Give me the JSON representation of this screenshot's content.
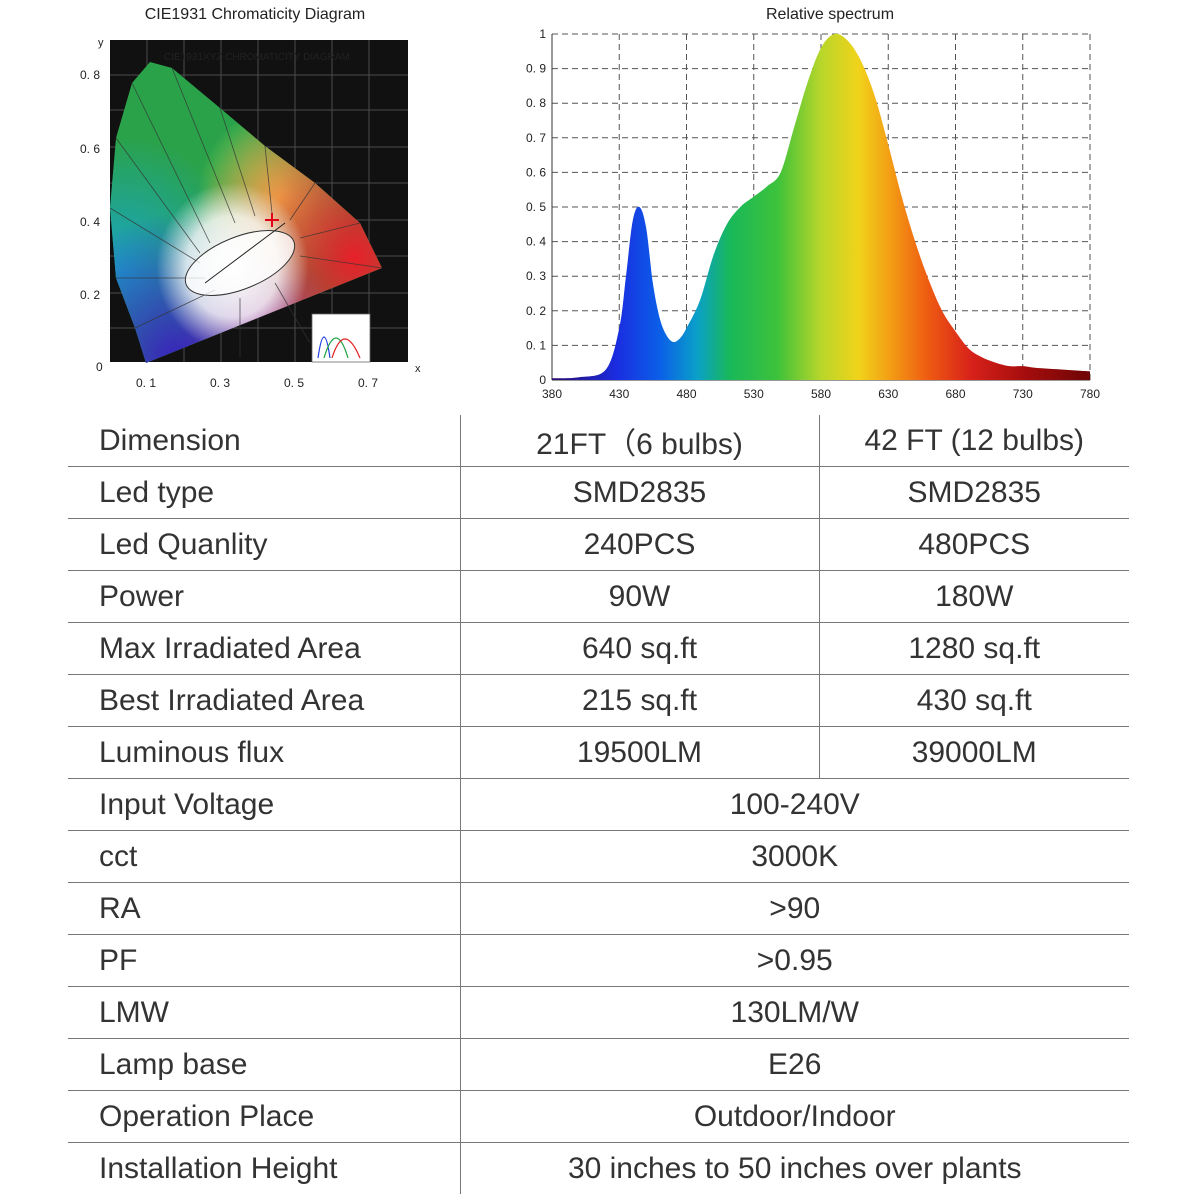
{
  "cie": {
    "title": "CIE1931 Chromaticity Diagram",
    "inner_title": "CIE1931XYZ CHROMATICITY DIAGRAM",
    "x_axis_label": "x",
    "y_axis_label": "y",
    "x_ticks": [
      "0. 1",
      "0. 3",
      "0. 5",
      "0. 7"
    ],
    "y_ticks": [
      "0. 8",
      "0. 6",
      "0. 4",
      "0. 2",
      "0"
    ],
    "marker_color": "#e0001a"
  },
  "chart_data": {
    "type": "area",
    "title": "Relative spectrum",
    "xlabel": "",
    "ylabel": "",
    "xlim": [
      380,
      780
    ],
    "ylim": [
      0,
      1
    ],
    "x_ticks": [
      380,
      430,
      480,
      530,
      580,
      630,
      680,
      730,
      780
    ],
    "y_ticks": [
      0,
      0.1,
      0.2,
      0.3,
      0.4,
      0.5,
      0.6,
      0.7,
      0.8,
      0.9,
      1
    ],
    "y_tick_labels": [
      "0",
      "0. 1",
      "0. 2",
      "0. 3",
      "0. 4",
      "0. 5",
      "0. 6",
      "0. 7",
      "0. 8",
      "0. 9",
      "1"
    ],
    "grid": true,
    "x": [
      380,
      400,
      420,
      430,
      435,
      440,
      445,
      450,
      455,
      460,
      465,
      470,
      475,
      480,
      490,
      500,
      510,
      520,
      530,
      540,
      550,
      560,
      570,
      580,
      590,
      600,
      610,
      620,
      630,
      640,
      650,
      660,
      670,
      680,
      690,
      700,
      710,
      720,
      730,
      740,
      760,
      780
    ],
    "y": [
      0.005,
      0.008,
      0.03,
      0.15,
      0.3,
      0.46,
      0.5,
      0.44,
      0.28,
      0.18,
      0.13,
      0.11,
      0.12,
      0.15,
      0.23,
      0.36,
      0.45,
      0.5,
      0.53,
      0.56,
      0.6,
      0.73,
      0.86,
      0.96,
      1.0,
      0.98,
      0.92,
      0.82,
      0.68,
      0.53,
      0.4,
      0.29,
      0.2,
      0.14,
      0.09,
      0.065,
      0.05,
      0.04,
      0.04,
      0.035,
      0.03,
      0.025
    ]
  },
  "table": {
    "rows": [
      {
        "label": "Dimension",
        "v1": "21FT（6 bulbs)",
        "v2": "42 FT (12 bulbs)"
      },
      {
        "label": "Led type",
        "v1": "SMD2835",
        "v2": "SMD2835"
      },
      {
        "label": "Led Quanlity",
        "v1": "240PCS",
        "v2": "480PCS"
      },
      {
        "label": "Power",
        "v1": "90W",
        "v2": "180W"
      },
      {
        "label": "Max Irradiated Area",
        "v1": "640 sq.ft",
        "v2": "1280 sq.ft"
      },
      {
        "label": "Best Irradiated Area",
        "v1": "215 sq.ft",
        "v2": "430 sq.ft"
      },
      {
        "label": "Luminous flux",
        "v1": "19500LM",
        "v2": "39000LM"
      },
      {
        "label": "Input Voltage",
        "v": "100-240V"
      },
      {
        "label": "cct",
        "v": "3000K"
      },
      {
        "label": "RA",
        "v": ">90"
      },
      {
        "label": "PF",
        "v": ">0.95"
      },
      {
        "label": "LMW",
        "v": "130LM/W"
      },
      {
        "label": "Lamp base",
        "v": "E26"
      },
      {
        "label": "Operation Place",
        "v": "Outdoor/Indoor"
      },
      {
        "label": "Installation Height",
        "v": "30 inches to 50 inches over plants"
      }
    ]
  }
}
